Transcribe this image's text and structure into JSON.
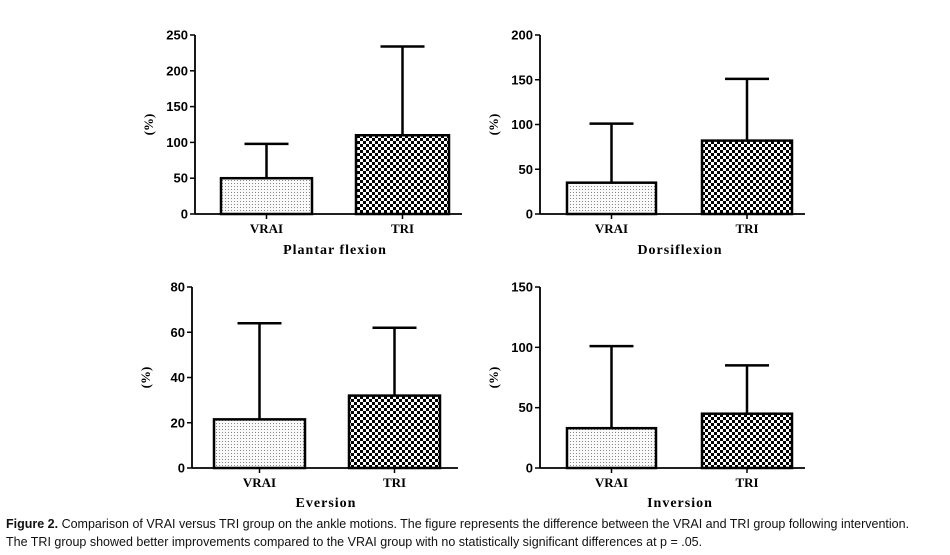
{
  "chart_data": [
    {
      "type": "bar",
      "title": "Plantar flexion",
      "ylabel": "(%)",
      "categories": [
        "VRAI",
        "TRI"
      ],
      "values": [
        50,
        110
      ],
      "error_upper": [
        98,
        234
      ],
      "ylim": [
        0,
        250
      ],
      "yticks": [
        0,
        50,
        100,
        150,
        200,
        250
      ]
    },
    {
      "type": "bar",
      "title": "Dorsiflexion",
      "ylabel": "(%)",
      "categories": [
        "VRAI",
        "TRI"
      ],
      "values": [
        35,
        82
      ],
      "error_upper": [
        101,
        151
      ],
      "ylim": [
        0,
        200
      ],
      "yticks": [
        0,
        50,
        100,
        150,
        200
      ]
    },
    {
      "type": "bar",
      "title": "Eversion",
      "ylabel": "(%)",
      "categories": [
        "VRAI",
        "TRI"
      ],
      "values": [
        21.5,
        32
      ],
      "error_upper": [
        64,
        62
      ],
      "ylim": [
        0,
        80
      ],
      "yticks": [
        0,
        20,
        40,
        60,
        80
      ]
    },
    {
      "type": "bar",
      "title": "Inversion",
      "ylabel": "(%)",
      "categories": [
        "VRAI",
        "TRI"
      ],
      "values": [
        33,
        45
      ],
      "error_upper": [
        101,
        85
      ],
      "ylim": [
        0,
        150
      ],
      "yticks": [
        0,
        50,
        100,
        150
      ]
    }
  ],
  "caption": {
    "label": "Figure 2.",
    "line1": "Comparison of VRAI versus TRI group on the ankle motions. The figure represents the difference between the VRAI and TRI group following intervention.",
    "line2": "The TRI group showed better improvements compared to the VRAI group with no statistically significant differences at p = .05."
  }
}
